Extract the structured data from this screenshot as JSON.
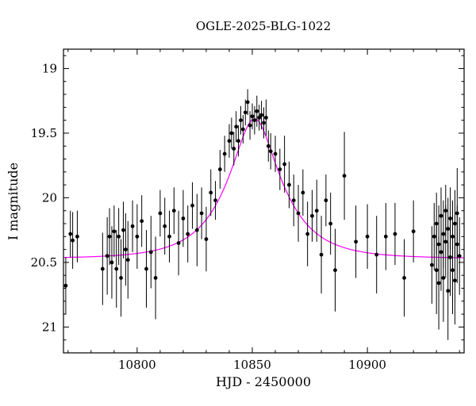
{
  "chart_data": {
    "type": "scatter",
    "title": "OGLE-2025-BLG-1022",
    "xlabel": "HJD - 2450000",
    "ylabel": "I magnitude",
    "x_range": [
      10768,
      10942
    ],
    "y_range_mag": [
      18.85,
      21.2
    ],
    "y_axis_inverted": true,
    "x_ticks_major": [
      10800,
      10850,
      10900
    ],
    "x_tick_minor_step": 10,
    "y_ticks_major": [
      19,
      19.5,
      20,
      20.5,
      21
    ],
    "y_tick_minor_step": 0.1,
    "grid": false,
    "legend": "none",
    "point_color": "#000000",
    "model_color": "#ff00ff",
    "frame_color": "#000000",
    "model": {
      "type": "paczynski",
      "t0": 10851,
      "tE": 22,
      "u0": 0.39,
      "baseline_mag": 20.47,
      "peak_mag": 19.38
    },
    "points_format": [
      "t_hjd_minus_2450000",
      "i_mag",
      "err_mag"
    ],
    "points": [
      [
        10769,
        20.68,
        0.22
      ],
      [
        10771,
        20.28,
        0.18
      ],
      [
        10772,
        20.33,
        0.22
      ],
      [
        10774,
        20.3,
        0.2
      ],
      [
        10785,
        20.55,
        0.28
      ],
      [
        10787,
        20.45,
        0.3
      ],
      [
        10788,
        20.3,
        0.22
      ],
      [
        10789,
        20.5,
        0.28
      ],
      [
        10790,
        20.26,
        0.2
      ],
      [
        10791,
        20.55,
        0.3
      ],
      [
        10792,
        20.3,
        0.22
      ],
      [
        10793,
        20.62,
        0.3
      ],
      [
        10794,
        20.25,
        0.22
      ],
      [
        10795,
        20.4,
        0.28
      ],
      [
        10796,
        20.48,
        0.3
      ],
      [
        10798,
        20.22,
        0.2
      ],
      [
        10800,
        20.3,
        0.25
      ],
      [
        10802,
        20.18,
        0.2
      ],
      [
        10804,
        20.55,
        0.3
      ],
      [
        10806,
        20.42,
        0.28
      ],
      [
        10808,
        20.62,
        0.32
      ],
      [
        10810,
        20.12,
        0.18
      ],
      [
        10812,
        20.22,
        0.22
      ],
      [
        10814,
        20.3,
        0.2
      ],
      [
        10816,
        20.1,
        0.18
      ],
      [
        10818,
        20.35,
        0.25
      ],
      [
        10820,
        20.16,
        0.22
      ],
      [
        10822,
        20.28,
        0.22
      ],
      [
        10824,
        20.06,
        0.18
      ],
      [
        10826,
        20.25,
        0.28
      ],
      [
        10828,
        20.12,
        0.2
      ],
      [
        10830,
        20.32,
        0.25
      ],
      [
        10832,
        19.96,
        0.18
      ],
      [
        10834,
        20.02,
        0.15
      ],
      [
        10836,
        19.78,
        0.15
      ],
      [
        10838,
        19.66,
        0.14
      ],
      [
        10840,
        19.56,
        0.13
      ],
      [
        10841,
        19.5,
        0.12
      ],
      [
        10842,
        19.62,
        0.13
      ],
      [
        10843,
        19.45,
        0.12
      ],
      [
        10844,
        19.56,
        0.12
      ],
      [
        10845,
        19.4,
        0.11
      ],
      [
        10846,
        19.47,
        0.11
      ],
      [
        10847,
        19.34,
        0.1
      ],
      [
        10848,
        19.26,
        0.1
      ],
      [
        10849,
        19.44,
        0.11
      ],
      [
        10850,
        19.37,
        0.1
      ],
      [
        10851,
        19.4,
        0.11
      ],
      [
        10852,
        19.33,
        0.12
      ],
      [
        10853,
        19.38,
        0.1
      ],
      [
        10854,
        19.36,
        0.11
      ],
      [
        10855,
        19.42,
        0.12
      ],
      [
        10856,
        19.38,
        0.14
      ],
      [
        10857,
        19.6,
        0.12
      ],
      [
        10858,
        19.64,
        0.14
      ],
      [
        10860,
        19.66,
        0.14
      ],
      [
        10862,
        19.78,
        0.16
      ],
      [
        10864,
        19.74,
        0.22
      ],
      [
        10866,
        19.9,
        0.18
      ],
      [
        10868,
        20.02,
        0.2
      ],
      [
        10870,
        20.12,
        0.22
      ],
      [
        10872,
        19.96,
        0.18
      ],
      [
        10874,
        20.28,
        0.25
      ],
      [
        10876,
        20.14,
        0.2
      ],
      [
        10878,
        20.1,
        0.24
      ],
      [
        10880,
        20.44,
        0.3
      ],
      [
        10882,
        20.02,
        0.2
      ],
      [
        10884,
        20.2,
        0.24
      ],
      [
        10886,
        20.56,
        0.32
      ],
      [
        10890,
        19.83,
        0.34
      ],
      [
        10895,
        20.34,
        0.28
      ],
      [
        10900,
        20.3,
        0.25
      ],
      [
        10904,
        20.44,
        0.3
      ],
      [
        10908,
        20.3,
        0.26
      ],
      [
        10912,
        20.28,
        0.24
      ],
      [
        10916,
        20.62,
        0.3
      ],
      [
        10920,
        20.26,
        0.24
      ],
      [
        10928,
        20.52,
        0.3
      ],
      [
        10929,
        20.3,
        0.26
      ],
      [
        10930,
        20.56,
        0.34
      ],
      [
        10930,
        20.2,
        0.24
      ],
      [
        10931,
        20.36,
        0.3
      ],
      [
        10931,
        20.66,
        0.36
      ],
      [
        10932,
        20.14,
        0.22
      ],
      [
        10932,
        20.42,
        0.3
      ],
      [
        10933,
        20.28,
        0.26
      ],
      [
        10933,
        20.62,
        0.34
      ],
      [
        10934,
        20.1,
        0.2
      ],
      [
        10934,
        20.34,
        0.28
      ],
      [
        10935,
        20.72,
        0.38
      ],
      [
        10935,
        20.24,
        0.24
      ],
      [
        10936,
        20.46,
        0.3
      ],
      [
        10936,
        20.16,
        0.24
      ],
      [
        10937,
        20.56,
        0.34
      ],
      [
        10937,
        20.3,
        0.28
      ],
      [
        10938,
        20.2,
        0.26
      ],
      [
        10938,
        20.64,
        0.34
      ],
      [
        10939,
        20.36,
        0.3
      ],
      [
        10939,
        20.12,
        0.35
      ],
      [
        10940,
        20.45,
        0.3
      ]
    ]
  }
}
